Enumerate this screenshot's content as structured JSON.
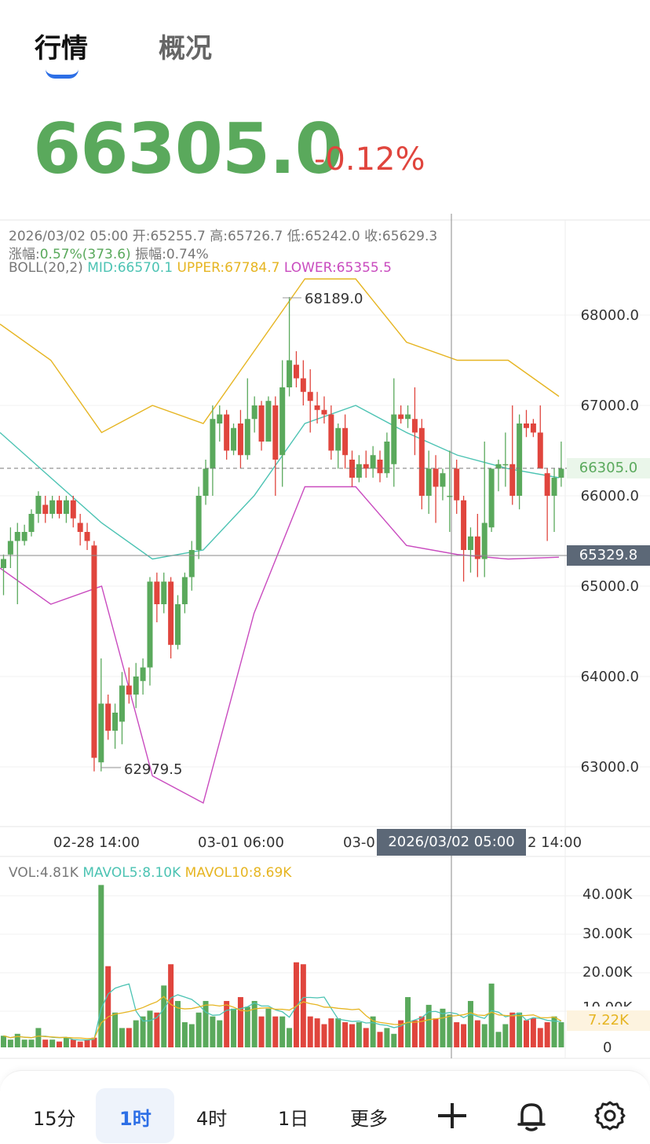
{
  "tabs": {
    "active": "行情",
    "inactive": "概况"
  },
  "price": {
    "last": "66305.0",
    "change_pct": "-0.12%"
  },
  "ohlc": {
    "datetime": "2026/03/02 05:00",
    "open_label": "开:",
    "open": "65255.7",
    "high_label": "高:",
    "high": "65726.7",
    "low_label": "低:",
    "low": "65242.0",
    "close_label": "收:",
    "close": "65629.3",
    "rise_label": "涨幅:",
    "rise": "0.57%(373.6)",
    "amp_label": "振幅:",
    "amp": "0.74%"
  },
  "boll": {
    "name": "BOLL(20,2)",
    "mid": "MID:66570.1",
    "upper": "UPPER:67784.7",
    "lower": "LOWER:65355.5"
  },
  "price_axis": [
    "68000.0",
    "67000.0",
    "66000.0",
    "65000.0",
    "64000.0",
    "63000.0"
  ],
  "current_tag": "66305.0",
  "crosshair_price": "65329.8",
  "crosshair_time": "2026/03/02 05:00",
  "time_axis": [
    "02-28 14:00",
    "03-01 06:00",
    "03-0",
    "2 14:00"
  ],
  "annotations": {
    "high": "68189.0",
    "low": "62979.5"
  },
  "volume": {
    "vol": "VOL:4.81K",
    "mavol5": "MAVOL5:8.10K",
    "mavol10": "MAVOL10:8.69K",
    "axis": [
      "40.00K",
      "30.00K",
      "20.00K",
      "10.00K",
      "0"
    ],
    "tag": "7.22K"
  },
  "intervals": [
    "15分",
    "1时",
    "4时",
    "1日",
    "更多"
  ],
  "selected_interval": "1时",
  "icons": [
    "draw-plus-icon",
    "bell-icon",
    "gear-icon"
  ],
  "colors": {
    "up": "#5aa95c",
    "down": "#e0453d",
    "mid": "#4cc3b3",
    "upper": "#e6b522",
    "lower": "#c94bbf",
    "accent": "#2d6fe6"
  },
  "chart_data": {
    "type": "candlestick",
    "interval": "1时",
    "ylim": [
      62300,
      68700
    ],
    "candles": [
      [
        65200,
        65300,
        64900,
        65350
      ],
      [
        65350,
        65500,
        65200,
        65650
      ],
      [
        65500,
        65600,
        64800,
        65700
      ],
      [
        65500,
        65600,
        65450,
        65680
      ],
      [
        65600,
        65800,
        65550,
        65850
      ],
      [
        65800,
        66000,
        65700,
        66050
      ],
      [
        65900,
        65800,
        65700,
        66000
      ],
      [
        65800,
        65950,
        65750,
        66000
      ],
      [
        65950,
        65800,
        65750,
        66000
      ],
      [
        65800,
        65950,
        65700,
        66000
      ],
      [
        65950,
        65750,
        65650,
        66000
      ],
      [
        65700,
        65600,
        65450,
        65800
      ],
      [
        65600,
        65500,
        65400,
        65700
      ],
      [
        65450,
        63100,
        62950,
        65500
      ],
      [
        63050,
        63700,
        62950,
        64200
      ],
      [
        63700,
        63400,
        63300,
        63800
      ],
      [
        63400,
        63600,
        63200,
        63700
      ],
      [
        63500,
        63900,
        63250,
        64050
      ],
      [
        63900,
        63800,
        63700,
        64100
      ],
      [
        63800,
        64000,
        63650,
        64150
      ],
      [
        63950,
        64100,
        63800,
        64200
      ],
      [
        64100,
        65050,
        63900,
        65100
      ],
      [
        65050,
        64800,
        64600,
        65150
      ],
      [
        64800,
        65050,
        64700,
        65150
      ],
      [
        65050,
        64350,
        64200,
        65100
      ],
      [
        64350,
        64800,
        64300,
        64900
      ],
      [
        64800,
        65100,
        64700,
        65150
      ],
      [
        65100,
        65400,
        64950,
        65500
      ],
      [
        65400,
        66000,
        65300,
        66100
      ],
      [
        66000,
        66300,
        65900,
        66400
      ],
      [
        66300,
        66850,
        66000,
        67000
      ],
      [
        66800,
        66900,
        66600,
        67000
      ],
      [
        66900,
        66500,
        66400,
        66950
      ],
      [
        66500,
        66750,
        66450,
        66800
      ],
      [
        66800,
        66450,
        66300,
        66950
      ],
      [
        66450,
        66850,
        66400,
        67300
      ],
      [
        66850,
        67000,
        66700,
        67100
      ],
      [
        67000,
        66600,
        66500,
        67050
      ],
      [
        66600,
        67050,
        66600,
        67100
      ],
      [
        67000,
        66400,
        66000,
        67100
      ],
      [
        66450,
        67200,
        66100,
        67500
      ],
      [
        67200,
        67500,
        67100,
        68200
      ],
      [
        67450,
        67300,
        67200,
        67600
      ],
      [
        67300,
        67150,
        67000,
        67500
      ],
      [
        67150,
        67050,
        66700,
        67400
      ],
      [
        67000,
        66950,
        66800,
        67150
      ],
      [
        66950,
        66900,
        66800,
        67100
      ],
      [
        66900,
        66500,
        66400,
        67000
      ],
      [
        66500,
        66750,
        66300,
        66800
      ],
      [
        66750,
        66450,
        66300,
        66900
      ],
      [
        66400,
        66200,
        66100,
        66500
      ],
      [
        66200,
        66350,
        66150,
        66450
      ],
      [
        66350,
        66300,
        66200,
        66500
      ],
      [
        66300,
        66450,
        66200,
        66550
      ],
      [
        66400,
        66250,
        66150,
        66500
      ],
      [
        66250,
        66600,
        66200,
        66700
      ],
      [
        66350,
        66900,
        66100,
        67300
      ],
      [
        66900,
        66850,
        66800,
        67000
      ],
      [
        66850,
        66900,
        66750,
        67000
      ],
      [
        66850,
        66700,
        66450,
        67200
      ],
      [
        66750,
        66000,
        65850,
        66850
      ],
      [
        66000,
        66300,
        65800,
        66500
      ],
      [
        66300,
        66100,
        65700,
        66450
      ],
      [
        66100,
        66250,
        65950,
        66300
      ],
      [
        66000,
        66000,
        65600,
        66500
      ],
      [
        66300,
        65950,
        65800,
        66400
      ],
      [
        65950,
        65400,
        65050,
        66000
      ],
      [
        65400,
        65550,
        65150,
        65650
      ],
      [
        65550,
        65300,
        65100,
        65800
      ],
      [
        65300,
        65700,
        65100,
        66600
      ],
      [
        65650,
        66300,
        65600,
        66300
      ],
      [
        66300,
        66350,
        66050,
        66400
      ],
      [
        66350,
        66350,
        66100,
        66700
      ],
      [
        66350,
        66000,
        65900,
        67000
      ],
      [
        66000,
        66800,
        65850,
        66900
      ],
      [
        66800,
        66750,
        66650,
        66950
      ],
      [
        66800,
        66700,
        66650,
        66850
      ],
      [
        66700,
        66300,
        66300,
        67000
      ],
      [
        66250,
        66000,
        65500,
        66300
      ],
      [
        66000,
        66200,
        65600,
        66300
      ],
      [
        66200,
        66300,
        66100,
        66600
      ]
    ],
    "bands_sample": {
      "upper": [
        67900,
        67500,
        66700,
        67000,
        66800,
        67600,
        68400,
        68400,
        67700,
        67500,
        67500,
        67100
      ],
      "mid": [
        66700,
        66200,
        65700,
        65300,
        65400,
        66000,
        66800,
        67000,
        66700,
        66450,
        66300,
        66200
      ],
      "lower": [
        65200,
        64800,
        65000,
        62900,
        62600,
        64700,
        66100,
        66100,
        65450,
        65350,
        65300,
        65320
      ]
    },
    "volume_k": [
      3,
      2,
      3.5,
      2,
      2,
      5,
      2,
      2,
      1.5,
      2.5,
      2,
      1.5,
      2,
      2.5,
      42,
      21,
      9,
      5,
      5,
      7,
      8,
      9.5,
      9,
      16,
      21.5,
      12,
      6.5,
      6,
      9,
      12,
      8,
      7,
      12,
      10,
      13,
      10.5,
      12,
      8,
      10,
      8,
      8,
      5,
      22,
      21.5,
      8,
      7.5,
      6,
      7.5,
      7.5,
      6.5,
      6,
      6.5,
      5,
      8,
      4,
      5,
      3.5,
      7,
      13,
      7,
      8,
      11,
      7.5,
      10,
      8.5,
      6.5,
      6,
      12,
      7,
      6,
      16.5,
      4,
      6,
      9,
      9,
      7,
      7.5,
      5,
      6.5,
      8,
      6.5
    ]
  }
}
